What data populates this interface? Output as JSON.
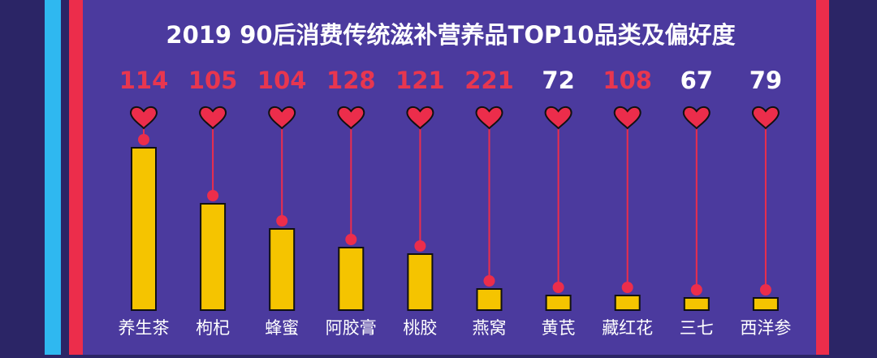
{
  "chart_data": {
    "type": "bar",
    "title": "2019 90后消费传统滋补营养品TOP10品类及偏好度",
    "categories": [
      "养生茶",
      "枸杞",
      "蜂蜜",
      "阿胶膏",
      "桃胶",
      "燕窝",
      "黄芪",
      "藏红花",
      "三七",
      "西洋参"
    ],
    "values": [
      200,
      131,
      100,
      77,
      69,
      26,
      18,
      18,
      15,
      15
    ],
    "ylim": [
      0,
      200
    ],
    "preference_index": [
      114,
      105,
      104,
      128,
      121,
      221,
      72,
      108,
      67,
      79
    ],
    "preference_colors": [
      "#e8364f",
      "#e8364f",
      "#e8364f",
      "#e8364f",
      "#e8364f",
      "#e8364f",
      "#ffffff",
      "#e8364f",
      "#ffffff",
      "#ffffff"
    ],
    "color": "#f5c400"
  }
}
